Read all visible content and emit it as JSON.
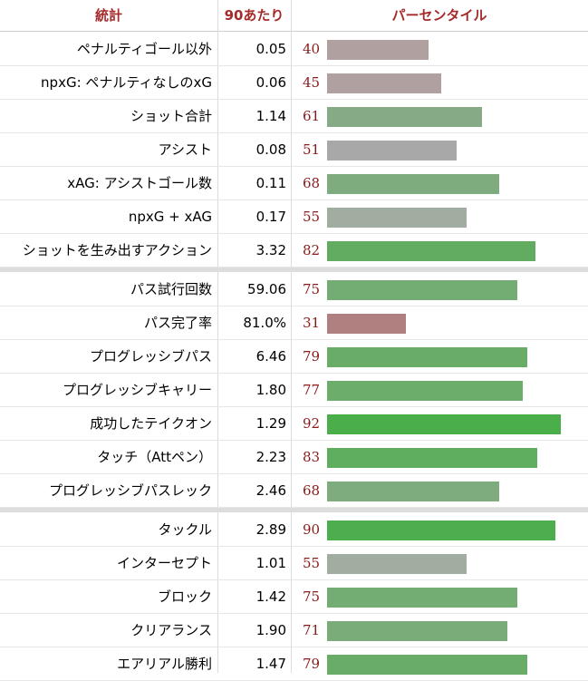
{
  "header": {
    "stat": "統計",
    "per90": "90あたり",
    "percentile": "パーセンタイル"
  },
  "groups": [
    {
      "rows": [
        {
          "stat": "ペナルティゴール以外",
          "per90": "0.05",
          "percentile": 40,
          "color": "#b0a0a0"
        },
        {
          "stat": "npxG: ペナルティなしのxG",
          "per90": "0.06",
          "percentile": 45,
          "color": "#b0a0a0"
        },
        {
          "stat": "ショット合計",
          "per90": "1.14",
          "percentile": 61,
          "color": "#86aa86"
        },
        {
          "stat": "アシスト",
          "per90": "0.08",
          "percentile": 51,
          "color": "#a8a8a8"
        },
        {
          "stat": "xAG: アシストゴール数",
          "per90": "0.11",
          "percentile": 68,
          "color": "#7fac7f"
        },
        {
          "stat": "npxG + xAG",
          "per90": "0.17",
          "percentile": 55,
          "color": "#a0ada0"
        },
        {
          "stat": "ショットを生み出すアクション",
          "per90": "3.32",
          "percentile": 82,
          "color": "#62ac62"
        }
      ]
    },
    {
      "rows": [
        {
          "stat": "パス試行回数",
          "per90": "59.06",
          "percentile": 75,
          "color": "#74ad74"
        },
        {
          "stat": "パス完了率",
          "per90": "81.0%",
          "percentile": 31,
          "color": "#b08080"
        },
        {
          "stat": "プログレッシブパス",
          "per90": "6.46",
          "percentile": 79,
          "color": "#68ac68"
        },
        {
          "stat": "プログレッシブキャリー",
          "per90": "1.80",
          "percentile": 77,
          "color": "#6cad6c"
        },
        {
          "stat": "成功したテイクオン",
          "per90": "1.29",
          "percentile": 92,
          "color": "#4aae4a"
        },
        {
          "stat": "タッチ（Attペン）",
          "per90": "2.23",
          "percentile": 83,
          "color": "#5fad5f"
        },
        {
          "stat": "プログレッシブパスレック",
          "per90": "2.46",
          "percentile": 68,
          "color": "#7fac7f"
        }
      ]
    },
    {
      "rows": [
        {
          "stat": "タックル",
          "per90": "2.89",
          "percentile": 90,
          "color": "#4dae4d"
        },
        {
          "stat": "インターセプト",
          "per90": "1.01",
          "percentile": 55,
          "color": "#a0ada0"
        },
        {
          "stat": "ブロック",
          "per90": "1.42",
          "percentile": 75,
          "color": "#74ad74"
        },
        {
          "stat": "クリアランス",
          "per90": "1.90",
          "percentile": 71,
          "color": "#79ac79"
        },
        {
          "stat": "エアリアル勝利",
          "per90": "1.47",
          "percentile": 79,
          "color": "#68ac68"
        }
      ]
    }
  ]
}
